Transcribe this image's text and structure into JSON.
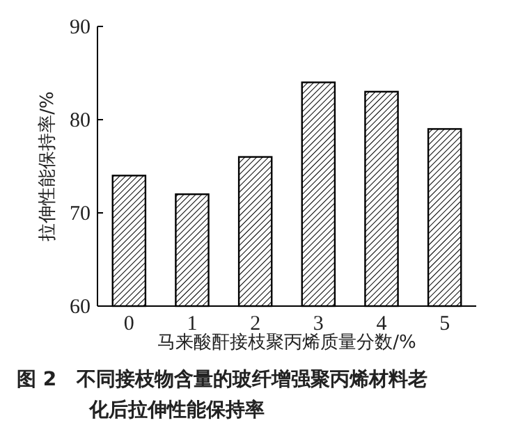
{
  "chart_data": {
    "type": "bar",
    "xlabel": "马来酸酐接枝聚丙烯质量分数/%",
    "ylabel": "拉伸性能保持率/%",
    "categories": [
      "0",
      "1",
      "2",
      "3",
      "4",
      "5"
    ],
    "values": [
      74,
      72,
      76,
      84,
      83,
      79
    ],
    "color": "#000000",
    "ylim": [
      60,
      90
    ],
    "yticks": [
      60,
      70,
      80,
      90
    ],
    "annotations": [
      "图 2   不同接枝物含量的玻纤增强聚丙烯材料老化后拉伸性能保持率"
    ]
  }
}
